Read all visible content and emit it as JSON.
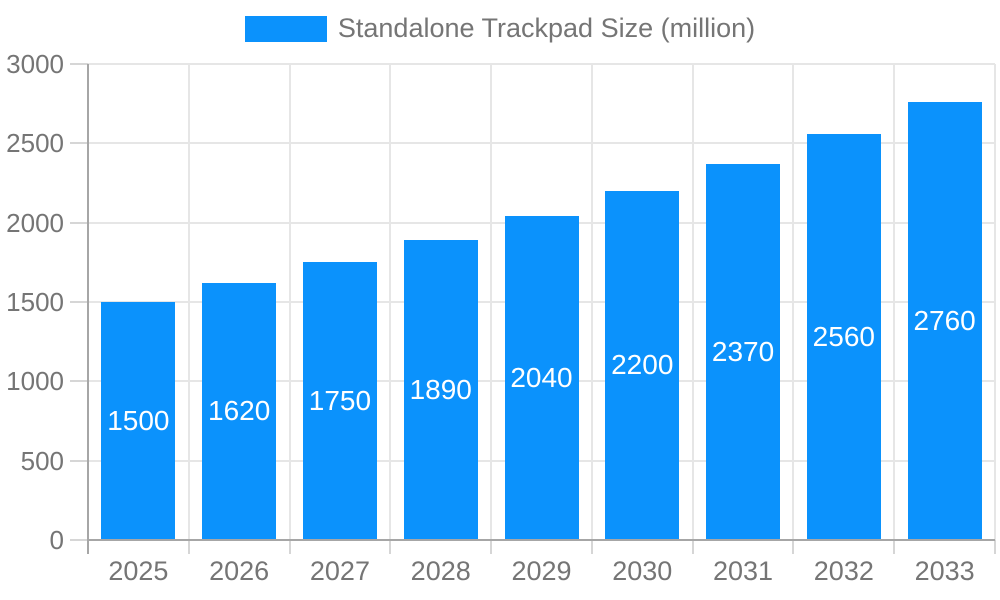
{
  "chart_data": {
    "type": "bar",
    "title": "Standalone Trackpad Size (million)",
    "categories": [
      "2025",
      "2026",
      "2027",
      "2028",
      "2029",
      "2030",
      "2031",
      "2032",
      "2033"
    ],
    "values": [
      1500,
      1620,
      1750,
      1890,
      2040,
      2200,
      2370,
      2560,
      2760
    ],
    "xlabel": "",
    "ylabel": "",
    "ylim": [
      0,
      3000
    ],
    "ytick_step": 500,
    "yticks": [
      "0",
      "500",
      "1000",
      "1500",
      "2000",
      "2500",
      "3000"
    ],
    "grid": true,
    "legend_position": "top-center",
    "value_label_position": "inside-center",
    "colors": {
      "bar": "#0b92fc",
      "value_label": "#ffffff",
      "axis_text": "#757575",
      "legend_text": "#757575",
      "gridline": "#e6e6e6",
      "axis_line": "#a6a6a6",
      "tick": "#d6d6d6"
    }
  }
}
